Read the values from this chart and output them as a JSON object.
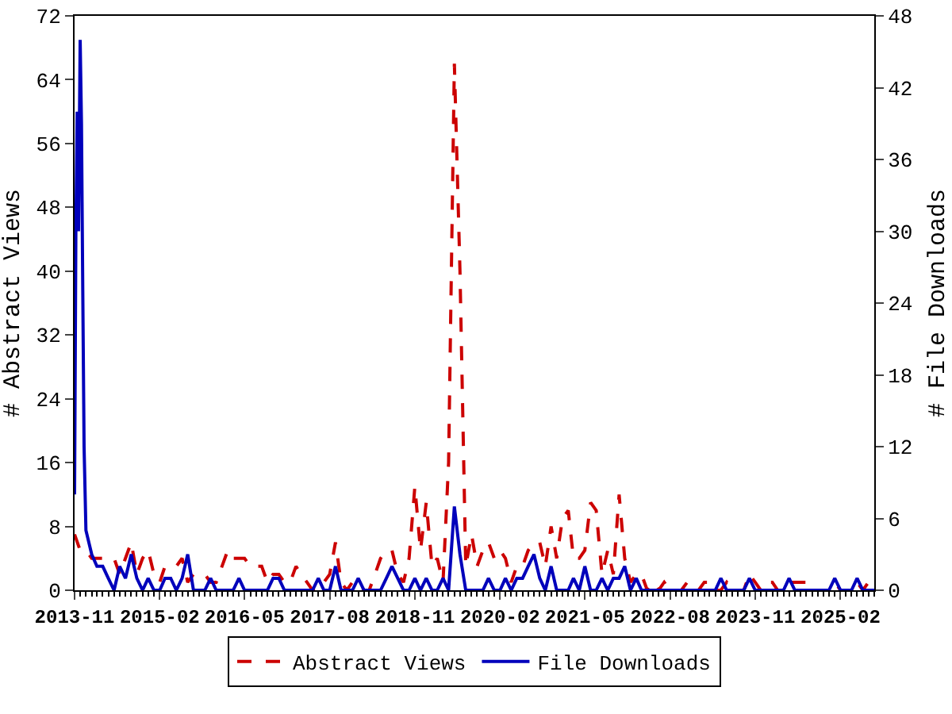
{
  "chart_data": {
    "type": "line",
    "ylabel": "# Abstract Views",
    "y2label": "# File Downloads",
    "x": [
      "2013-11",
      "2013-12",
      "2014-01",
      "2014-02",
      "2014-03",
      "2014-04",
      "2014-05",
      "2014-06",
      "2014-07",
      "2014-08",
      "2014-09",
      "2014-10",
      "2014-11",
      "2014-12",
      "2015-01",
      "2015-02",
      "2015-03",
      "2015-04",
      "2015-05",
      "2015-06",
      "2015-07",
      "2015-08",
      "2015-09",
      "2015-10",
      "2015-11",
      "2015-12",
      "2016-01",
      "2016-02",
      "2016-03",
      "2016-04",
      "2016-05",
      "2016-06",
      "2016-07",
      "2016-08",
      "2016-09",
      "2016-10",
      "2016-11",
      "2016-12",
      "2017-01",
      "2017-02",
      "2017-03",
      "2017-04",
      "2017-05",
      "2017-06",
      "2017-07",
      "2017-08",
      "2017-09",
      "2017-10",
      "2017-11",
      "2017-12",
      "2018-01",
      "2018-02",
      "2018-03",
      "2018-04",
      "2018-05",
      "2018-06",
      "2018-07",
      "2018-08",
      "2018-09",
      "2018-10",
      "2018-11",
      "2018-12",
      "2019-01",
      "2019-02",
      "2019-03",
      "2019-04",
      "2019-05",
      "2019-06",
      "2019-07",
      "2019-08",
      "2019-09",
      "2019-10",
      "2019-11",
      "2019-12",
      "2020-01",
      "2020-02",
      "2020-03",
      "2020-04",
      "2020-05",
      "2020-06",
      "2020-07",
      "2020-08",
      "2020-09",
      "2020-10",
      "2020-11",
      "2020-12",
      "2021-01",
      "2021-02",
      "2021-03",
      "2021-04",
      "2021-05",
      "2021-06",
      "2021-07",
      "2021-08",
      "2021-09",
      "2021-10",
      "2021-11",
      "2021-12",
      "2022-01",
      "2022-02",
      "2022-03",
      "2022-04",
      "2022-05",
      "2022-06",
      "2022-07",
      "2022-08",
      "2022-09",
      "2022-10",
      "2022-11",
      "2022-12",
      "2023-01",
      "2023-02",
      "2023-03",
      "2023-04",
      "2023-05",
      "2023-06",
      "2023-07",
      "2023-08",
      "2023-09",
      "2023-10",
      "2023-11",
      "2023-12",
      "2024-01",
      "2024-02",
      "2024-03",
      "2024-04",
      "2024-05",
      "2024-06",
      "2024-07",
      "2024-08",
      "2024-09",
      "2024-10",
      "2024-11",
      "2024-12",
      "2025-01",
      "2025-02",
      "2025-03",
      "2025-04",
      "2025-05",
      "2025-06",
      "2025-07",
      "2025-08"
    ],
    "series": [
      {
        "name": "Abstract Views",
        "color": "#cc0000",
        "line_style": "dashed",
        "values": [
          7,
          5,
          5,
          4,
          4,
          4,
          4,
          4,
          2,
          4,
          6,
          2,
          4,
          5,
          2,
          1,
          3,
          3,
          3,
          4,
          1,
          2,
          2,
          2,
          1,
          1,
          3,
          5,
          4,
          4,
          4,
          3,
          3,
          3,
          1,
          2,
          2,
          1,
          1,
          3,
          2,
          1,
          0,
          0,
          1,
          2,
          6,
          1,
          0,
          1,
          1,
          0,
          0,
          2,
          4,
          5,
          5,
          2,
          1,
          4,
          13,
          5,
          11,
          3,
          4,
          1,
          16,
          66,
          40,
          3,
          7,
          3,
          5,
          6,
          4,
          5,
          4,
          1,
          3,
          3,
          5,
          6,
          6,
          3,
          8,
          4,
          9,
          10,
          4,
          4,
          5,
          11,
          10,
          2,
          5,
          2,
          12,
          4,
          1,
          2,
          2,
          0,
          1,
          0,
          1,
          0,
          0,
          0,
          1,
          1,
          0,
          1,
          1,
          0,
          0,
          1,
          0,
          0,
          0,
          2,
          1,
          0,
          1,
          1,
          0,
          0,
          1,
          1,
          1,
          1,
          0,
          0,
          0,
          0,
          1,
          0,
          0,
          0,
          1,
          0,
          1,
          1
        ]
      },
      {
        "name": "File Downloads",
        "color": "#0000bb",
        "line_style": "solid",
        "axis": "y2",
        "x": [
          "2013-11-01",
          "2013-11-08",
          "2013-11-15",
          "2013-11-22",
          "2013-12-01",
          "2013-12-08",
          "2013-12-15",
          "2013-12-22",
          "2014-01-01",
          "2014-02",
          "2014-03",
          "2014-04",
          "2014-05",
          "2014-06",
          "2014-07",
          "2014-08",
          "2014-09",
          "2014-10",
          "2014-11",
          "2014-12",
          "2015-01",
          "2015-02",
          "2015-03",
          "2015-04",
          "2015-05",
          "2015-06",
          "2015-07",
          "2015-08",
          "2015-09",
          "2015-10",
          "2015-11",
          "2015-12",
          "2016-01",
          "2016-02",
          "2016-03",
          "2016-04",
          "2016-05",
          "2016-06",
          "2016-07",
          "2016-08",
          "2016-09",
          "2016-10",
          "2016-11",
          "2016-12",
          "2017-01",
          "2017-02",
          "2017-03",
          "2017-04",
          "2017-05",
          "2017-06",
          "2017-07",
          "2017-08",
          "2017-09",
          "2017-10",
          "2017-11",
          "2017-12",
          "2018-01",
          "2018-02",
          "2018-03",
          "2018-04",
          "2018-05",
          "2018-06",
          "2018-07",
          "2018-08",
          "2018-09",
          "2018-10",
          "2018-11",
          "2018-12",
          "2019-01",
          "2019-02",
          "2019-03",
          "2019-04",
          "2019-05",
          "2019-06",
          "2019-07",
          "2019-08",
          "2019-09",
          "2019-10",
          "2019-11",
          "2019-12",
          "2020-01",
          "2020-02",
          "2020-03",
          "2020-04",
          "2020-05",
          "2020-06",
          "2020-07",
          "2020-08",
          "2020-09",
          "2020-10",
          "2020-11",
          "2020-12",
          "2021-01",
          "2021-02",
          "2021-03",
          "2021-04",
          "2021-05",
          "2021-06",
          "2021-07",
          "2021-08",
          "2021-09",
          "2021-10",
          "2021-11",
          "2021-12",
          "2022-01",
          "2022-02",
          "2022-03",
          "2022-04",
          "2022-05",
          "2022-06",
          "2022-07",
          "2022-08",
          "2022-09",
          "2022-10",
          "2022-11",
          "2022-12",
          "2023-01",
          "2023-02",
          "2023-03",
          "2023-04",
          "2023-05",
          "2023-06",
          "2023-07",
          "2023-08",
          "2023-09",
          "2023-10",
          "2023-11",
          "2023-12",
          "2024-01",
          "2024-02",
          "2024-03",
          "2024-04",
          "2024-05",
          "2024-06",
          "2024-07",
          "2024-08",
          "2024-09",
          "2024-10",
          "2024-11",
          "2024-12",
          "2025-01",
          "2025-02",
          "2025-03",
          "2025-04",
          "2025-05",
          "2025-06",
          "2025-07",
          "2025-08"
        ],
        "values": [
          8,
          30,
          40,
          30,
          46,
          39,
          25,
          12,
          5,
          3,
          2,
          2,
          1,
          0,
          2,
          1,
          3,
          1,
          0,
          1,
          0,
          0,
          1,
          1,
          0,
          1,
          3,
          0,
          0,
          0,
          1,
          0,
          0,
          0,
          0,
          1,
          0,
          0,
          0,
          0,
          0,
          1,
          1,
          0,
          0,
          0,
          0,
          0,
          0,
          1,
          0,
          0,
          2,
          0,
          0,
          0,
          1,
          0,
          0,
          0,
          0,
          1,
          2,
          1,
          0,
          0,
          1,
          0,
          1,
          0,
          0,
          1,
          0,
          7,
          3,
          0,
          0,
          0,
          0,
          1,
          0,
          0,
          1,
          0,
          1,
          1,
          2,
          3,
          1,
          0,
          2,
          0,
          0,
          0,
          1,
          0,
          2,
          0,
          0,
          1,
          0,
          1,
          1,
          2,
          0,
          1,
          0,
          0,
          0,
          0,
          0,
          0,
          0,
          0,
          0,
          0,
          0,
          0,
          0,
          0,
          1,
          0,
          0,
          0,
          0,
          1,
          0,
          0,
          0,
          0,
          0,
          0,
          1,
          0,
          0,
          0,
          0,
          0,
          0,
          0,
          1,
          0,
          0,
          0,
          1,
          0,
          0,
          0
        ]
      }
    ],
    "xlim": [
      "2013-11",
      "2025-08"
    ],
    "xticks": [
      {
        "value": "2013-11",
        "label": "2013-11"
      },
      {
        "value": "2015-02",
        "label": "2015-02"
      },
      {
        "value": "2016-05",
        "label": "2016-05"
      },
      {
        "value": "2017-08",
        "label": "2017-08"
      },
      {
        "value": "2018-11",
        "label": "2018-11"
      },
      {
        "value": "2020-02",
        "label": "2020-02"
      },
      {
        "value": "2021-05",
        "label": "2021-05"
      },
      {
        "value": "2022-08",
        "label": "2022-08"
      },
      {
        "value": "2023-11",
        "label": "2023-11"
      },
      {
        "value": "2025-02",
        "label": "2025-02"
      }
    ],
    "ylim": [
      0,
      72
    ],
    "yticks": [
      0,
      8,
      16,
      24,
      32,
      40,
      48,
      56,
      64,
      72
    ],
    "y2lim": [
      0,
      48
    ],
    "y2ticks": [
      0,
      6,
      12,
      18,
      24,
      30,
      36,
      42,
      48
    ],
    "grid": false,
    "legend": "bottom",
    "marker": "none"
  }
}
